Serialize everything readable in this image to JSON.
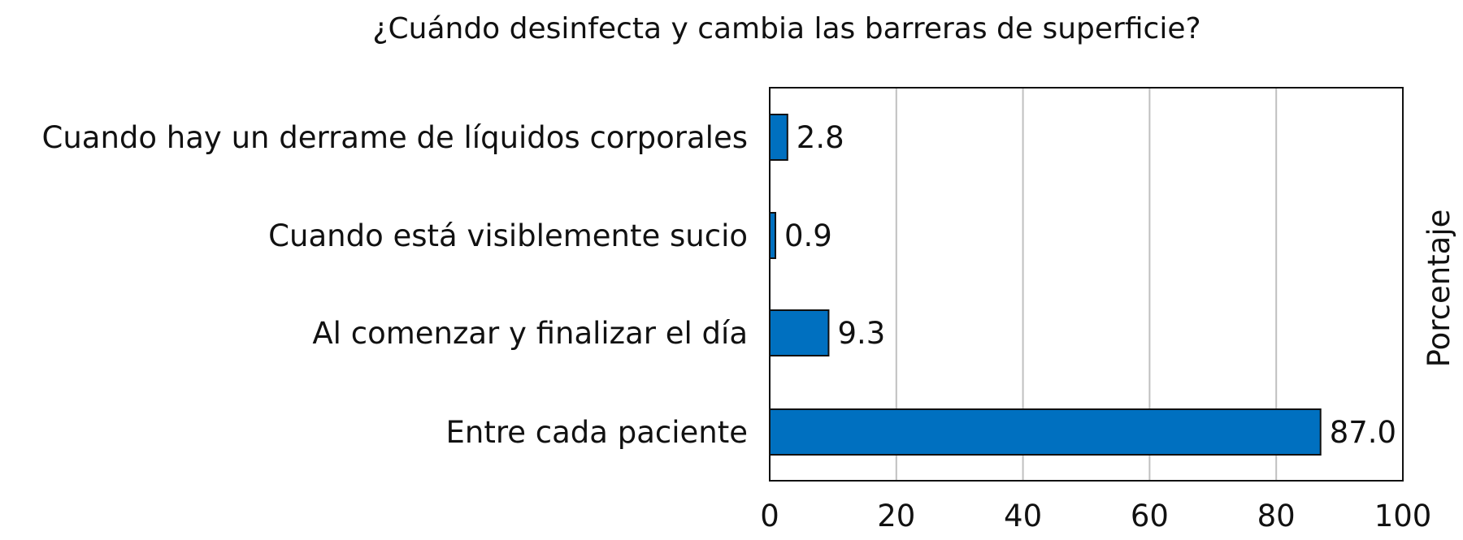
{
  "chart_data": {
    "type": "bar",
    "orientation": "horizontal",
    "title": "¿Cuándo desinfecta y cambia las barreras de superficie?",
    "xlabel": "",
    "ylabel": "Porcentaje",
    "categories": [
      "Cuando hay un derrame de líquidos corporales",
      "Cuando está visiblemente sucio",
      "Al comenzar y finalizar el día",
      "Entre cada paciente"
    ],
    "values": [
      2.8,
      0.9,
      9.3,
      87.0
    ],
    "value_labels": [
      "2.8",
      "0.9",
      "9.3",
      "87.0"
    ],
    "xlim": [
      0,
      100
    ],
    "xticks": [
      0,
      20,
      40,
      60,
      80,
      100
    ],
    "tick_labels": [
      "0",
      "20",
      "40",
      "60",
      "80",
      "100"
    ],
    "grid": true,
    "bar_color": "#0070C0",
    "edge_color": "#111111",
    "grid_color": "#C0C0C0"
  }
}
